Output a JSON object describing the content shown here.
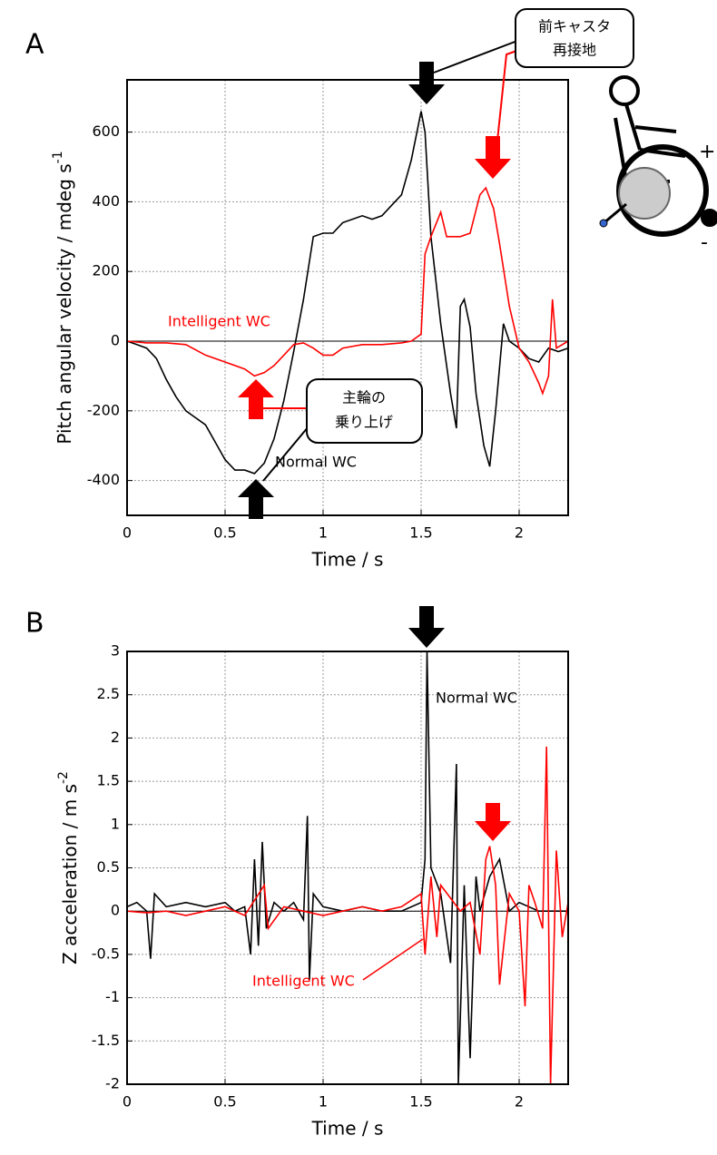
{
  "chart_data": [
    {
      "type": "line",
      "panel_label": "A",
      "xlabel": "Time / s",
      "ylabel": "Pitch angular velocity / mdeg s",
      "ylabel_sup": "-1",
      "xlim": [
        0,
        2.25
      ],
      "ylim": [
        -500,
        750
      ],
      "xticks": [
        0,
        0.5,
        1,
        1.5,
        2
      ],
      "yticks": [
        -400,
        -200,
        0,
        200,
        400,
        600
      ],
      "grid": true,
      "zero_line": true,
      "callouts": [
        [
          "前キャスタ",
          "再接地"
        ],
        [
          "主輪の",
          "乗り上げ"
        ]
      ],
      "series": [
        {
          "name": "Normal WC",
          "color": "#000000",
          "x": [
            0,
            0.05,
            0.1,
            0.15,
            0.2,
            0.25,
            0.3,
            0.35,
            0.4,
            0.45,
            0.5,
            0.55,
            0.6,
            0.65,
            0.7,
            0.75,
            0.8,
            0.85,
            0.9,
            0.95,
            1.0,
            1.05,
            1.1,
            1.15,
            1.2,
            1.25,
            1.3,
            1.35,
            1.4,
            1.45,
            1.5,
            1.52,
            1.55,
            1.6,
            1.65,
            1.68,
            1.7,
            1.72,
            1.75,
            1.78,
            1.82,
            1.85,
            1.88,
            1.92,
            1.95,
            2.0,
            2.05,
            2.1,
            2.15,
            2.2,
            2.25
          ],
          "values": [
            0,
            -10,
            -20,
            -50,
            -110,
            -160,
            -200,
            -220,
            -240,
            -290,
            -340,
            -370,
            -370,
            -380,
            -350,
            -280,
            -170,
            -30,
            120,
            300,
            310,
            310,
            340,
            350,
            360,
            350,
            360,
            390,
            420,
            520,
            660,
            600,
            300,
            50,
            -150,
            -250,
            100,
            120,
            40,
            -150,
            -300,
            -360,
            -200,
            50,
            0,
            -20,
            -50,
            -60,
            -20,
            -30,
            -20
          ]
        },
        {
          "name": "Intelligent WC",
          "color": "#ff0000",
          "x": [
            0,
            0.1,
            0.2,
            0.3,
            0.4,
            0.5,
            0.6,
            0.65,
            0.7,
            0.75,
            0.8,
            0.85,
            0.9,
            0.95,
            1.0,
            1.05,
            1.1,
            1.2,
            1.3,
            1.4,
            1.45,
            1.5,
            1.52,
            1.55,
            1.6,
            1.63,
            1.7,
            1.75,
            1.8,
            1.83,
            1.87,
            1.9,
            1.95,
            2.0,
            2.05,
            2.1,
            2.12,
            2.15,
            2.17,
            2.19,
            2.25
          ],
          "values": [
            0,
            -5,
            -5,
            -10,
            -40,
            -60,
            -80,
            -100,
            -90,
            -70,
            -40,
            -10,
            -5,
            -20,
            -40,
            -40,
            -20,
            -10,
            -10,
            -5,
            0,
            20,
            250,
            300,
            370,
            300,
            300,
            310,
            420,
            440,
            380,
            280,
            100,
            -20,
            -60,
            -120,
            -150,
            -100,
            120,
            -20,
            0
          ]
        }
      ]
    },
    {
      "type": "line",
      "panel_label": "B",
      "xlabel": "Time / s",
      "ylabel": "Z acceleration / m s",
      "ylabel_sup": "-2",
      "xlim": [
        0,
        2.25
      ],
      "ylim": [
        -2,
        3
      ],
      "xticks": [
        0,
        0.5,
        1,
        1.5,
        2
      ],
      "yticks": [
        -2,
        -1.5,
        -1,
        -0.5,
        0,
        0.5,
        1,
        1.5,
        2,
        2.5,
        3
      ],
      "grid": true,
      "zero_line": true,
      "series": [
        {
          "name": "Normal WC",
          "color": "#000000",
          "x": [
            0,
            0.05,
            0.1,
            0.12,
            0.14,
            0.2,
            0.3,
            0.4,
            0.5,
            0.55,
            0.6,
            0.63,
            0.65,
            0.67,
            0.69,
            0.71,
            0.75,
            0.8,
            0.85,
            0.9,
            0.92,
            0.93,
            0.95,
            1.0,
            1.1,
            1.2,
            1.3,
            1.4,
            1.5,
            1.52,
            1.53,
            1.55,
            1.6,
            1.65,
            1.68,
            1.69,
            1.72,
            1.75,
            1.78,
            1.8,
            1.85,
            1.9,
            1.95,
            2.0,
            2.1,
            2.2,
            2.25
          ],
          "values": [
            0.05,
            0.1,
            0,
            -0.55,
            0.2,
            0.05,
            0.1,
            0.05,
            0.1,
            0,
            0.05,
            -0.5,
            0.6,
            -0.4,
            0.8,
            -0.2,
            0.1,
            0,
            0.1,
            -0.1,
            1.1,
            -0.8,
            0.2,
            0.05,
            0,
            0.05,
            0,
            0,
            0.1,
            0.6,
            3.0,
            0.5,
            0.2,
            -0.6,
            1.7,
            -2.0,
            0.3,
            -1.7,
            0.4,
            0,
            0.4,
            0.6,
            0,
            0.1,
            0,
            0,
            0
          ]
        },
        {
          "name": "Intelligent WC",
          "color": "#ff0000",
          "x": [
            0,
            0.1,
            0.2,
            0.3,
            0.4,
            0.5,
            0.6,
            0.7,
            0.72,
            0.8,
            0.9,
            1.0,
            1.1,
            1.2,
            1.3,
            1.4,
            1.5,
            1.52,
            1.55,
            1.58,
            1.6,
            1.7,
            1.75,
            1.8,
            1.83,
            1.85,
            1.88,
            1.9,
            1.95,
            2.0,
            2.03,
            2.05,
            2.08,
            2.12,
            2.14,
            2.16,
            2.19,
            2.22,
            2.25
          ],
          "values": [
            0,
            -0.02,
            0,
            -0.05,
            0,
            0.05,
            -0.05,
            0.3,
            -0.2,
            0.05,
            0,
            -0.05,
            0,
            0.05,
            0,
            0.05,
            0.2,
            -0.5,
            0.4,
            -0.3,
            0.3,
            0,
            0.1,
            -0.5,
            0.6,
            0.75,
            0.3,
            -0.85,
            0.2,
            0,
            -1.1,
            0.3,
            0.1,
            -0.2,
            1.9,
            -2.0,
            0.7,
            -0.3,
            0.1
          ]
        }
      ]
    }
  ]
}
